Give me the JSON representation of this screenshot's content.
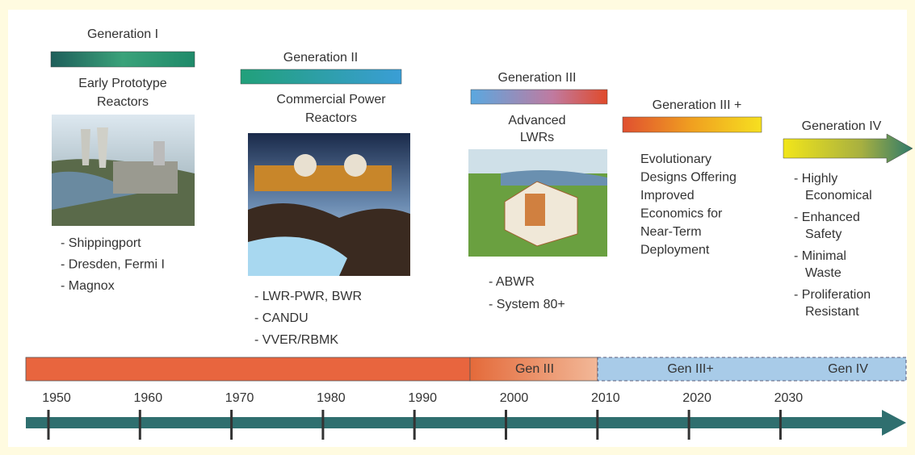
{
  "generations": [
    {
      "title": "Generation I",
      "subtitle": [
        "Early Prototype",
        "Reactors"
      ],
      "items": [
        [
          "- Shippingport"
        ],
        [
          "- Dresden, Fermi I"
        ],
        [
          "- Magnox"
        ]
      ]
    },
    {
      "title": "Generation II",
      "subtitle": [
        "Commercial Power",
        "Reactors"
      ],
      "items": [
        [
          "- LWR-PWR, BWR"
        ],
        [
          "- CANDU"
        ],
        [
          "- VVER/RBMK"
        ]
      ]
    },
    {
      "title": "Generation III",
      "subtitle": [
        "Advanced",
        "LWRs"
      ],
      "items": [
        [
          "- ABWR"
        ],
        [
          "- System 80+"
        ]
      ]
    },
    {
      "title": "Generation III +",
      "subtitle": [
        "Evolutionary",
        "Designs Offering",
        "Improved",
        "Economics for",
        "Near-Term",
        "Deployment"
      ],
      "items": []
    },
    {
      "title": "Generation IV",
      "subtitle": [],
      "items": [
        [
          "- Highly",
          "Economical"
        ],
        [
          "- Enhanced",
          "Safety"
        ],
        [
          "- Minimal",
          "Waste"
        ],
        [
          "- Proliferation",
          "Resistant"
        ]
      ]
    }
  ],
  "era_labels": [
    "Gen III",
    "Gen III+",
    "Gen IV"
  ],
  "years": [
    "1950",
    "1960",
    "1970",
    "1980",
    "1990",
    "2000",
    "2010",
    "2020",
    "2030"
  ]
}
